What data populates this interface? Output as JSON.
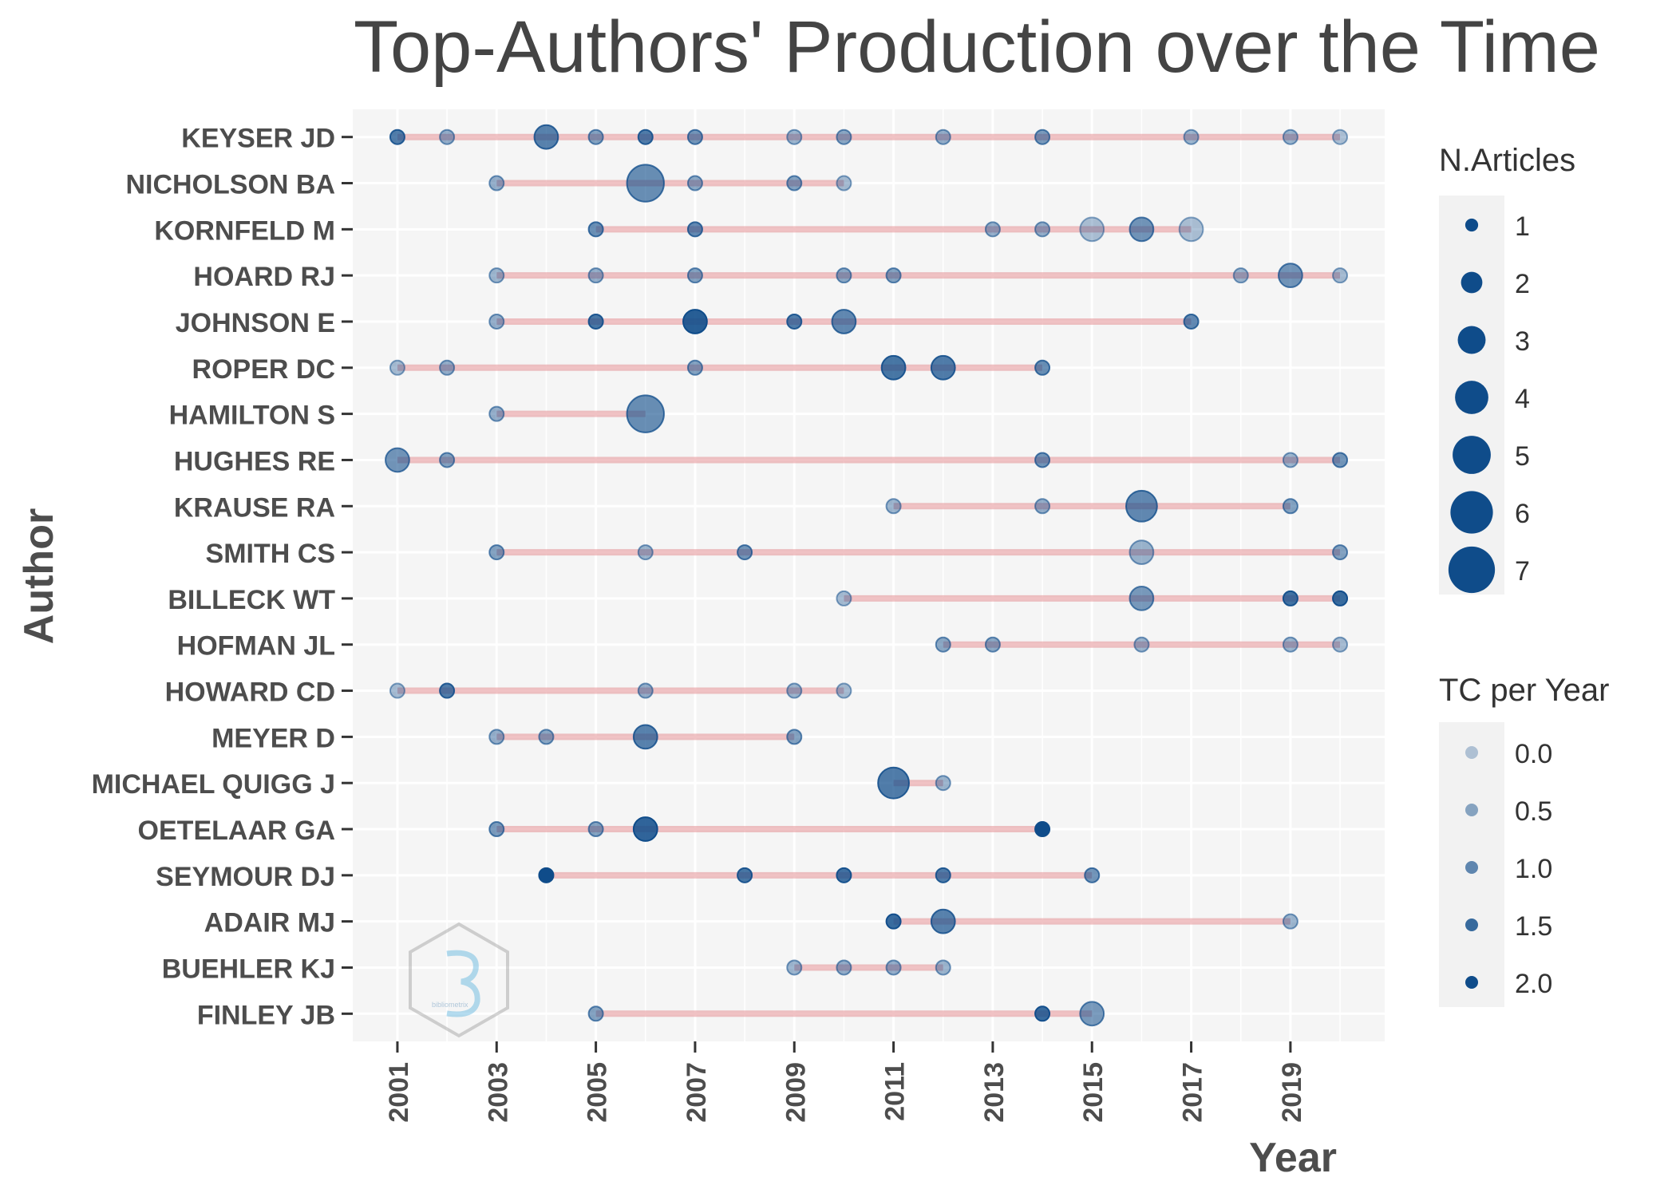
{
  "chart_data": {
    "type": "scatter",
    "title": "Top-Authors' Production over the Time",
    "xlabel": "Year",
    "ylabel": "Author",
    "xlim": [
      2000.1,
      2020.9
    ],
    "x_ticks": [
      2001,
      2003,
      2005,
      2007,
      2009,
      2011,
      2013,
      2015,
      2017,
      2019
    ],
    "grid": true,
    "colors": {
      "point": "#0f4c8a",
      "segment": "#e38f93",
      "panel": "#f5f5f5",
      "gridline": "#ffffff"
    },
    "authors": [
      {
        "name": "KEYSER JD",
        "start": 2001,
        "end": 2020,
        "points": [
          {
            "year": 2001,
            "articles": 1,
            "tc": 1.2
          },
          {
            "year": 2002,
            "articles": 1,
            "tc": 0.4
          },
          {
            "year": 2004,
            "articles": 2,
            "tc": 1.1
          },
          {
            "year": 2005,
            "articles": 1,
            "tc": 0.6
          },
          {
            "year": 2006,
            "articles": 1,
            "tc": 1.2
          },
          {
            "year": 2007,
            "articles": 1,
            "tc": 0.8
          },
          {
            "year": 2009,
            "articles": 1,
            "tc": 0.3
          },
          {
            "year": 2010,
            "articles": 1,
            "tc": 0.5
          },
          {
            "year": 2012,
            "articles": 1,
            "tc": 0.4
          },
          {
            "year": 2014,
            "articles": 1,
            "tc": 0.7
          },
          {
            "year": 2017,
            "articles": 1,
            "tc": 0.3
          },
          {
            "year": 2019,
            "articles": 1,
            "tc": 0.3
          },
          {
            "year": 2020,
            "articles": 1,
            "tc": 0.1
          }
        ]
      },
      {
        "name": "NICHOLSON BA",
        "start": 2003,
        "end": 2010,
        "points": [
          {
            "year": 2003,
            "articles": 1,
            "tc": 0.4
          },
          {
            "year": 2006,
            "articles": 4,
            "tc": 0.9
          },
          {
            "year": 2007,
            "articles": 1,
            "tc": 0.5
          },
          {
            "year": 2009,
            "articles": 1,
            "tc": 0.6
          },
          {
            "year": 2010,
            "articles": 1,
            "tc": 0.2
          }
        ]
      },
      {
        "name": "KORNFELD M",
        "start": 2005,
        "end": 2017,
        "points": [
          {
            "year": 2005,
            "articles": 1,
            "tc": 0.9
          },
          {
            "year": 2007,
            "articles": 1,
            "tc": 1.0
          },
          {
            "year": 2013,
            "articles": 1,
            "tc": 0.4
          },
          {
            "year": 2014,
            "articles": 1,
            "tc": 0.4
          },
          {
            "year": 2015,
            "articles": 2,
            "tc": 0.1
          },
          {
            "year": 2016,
            "articles": 2,
            "tc": 0.8
          },
          {
            "year": 2017,
            "articles": 2,
            "tc": 0.1
          }
        ]
      },
      {
        "name": "HOARD RJ",
        "start": 2003,
        "end": 2020,
        "points": [
          {
            "year": 2003,
            "articles": 1,
            "tc": 0.3
          },
          {
            "year": 2005,
            "articles": 1,
            "tc": 0.4
          },
          {
            "year": 2007,
            "articles": 1,
            "tc": 0.6
          },
          {
            "year": 2010,
            "articles": 1,
            "tc": 0.5
          },
          {
            "year": 2011,
            "articles": 1,
            "tc": 0.6
          },
          {
            "year": 2018,
            "articles": 1,
            "tc": 0.3
          },
          {
            "year": 2019,
            "articles": 2,
            "tc": 0.8
          },
          {
            "year": 2020,
            "articles": 1,
            "tc": 0.2
          }
        ]
      },
      {
        "name": "JOHNSON E",
        "start": 2003,
        "end": 2017,
        "points": [
          {
            "year": 2003,
            "articles": 1,
            "tc": 0.4
          },
          {
            "year": 2005,
            "articles": 1,
            "tc": 1.3
          },
          {
            "year": 2007,
            "articles": 2,
            "tc": 1.7
          },
          {
            "year": 2009,
            "articles": 1,
            "tc": 1.2
          },
          {
            "year": 2010,
            "articles": 2,
            "tc": 1.0
          },
          {
            "year": 2017,
            "articles": 1,
            "tc": 1.0
          }
        ]
      },
      {
        "name": "ROPER DC",
        "start": 2001,
        "end": 2014,
        "points": [
          {
            "year": 2001,
            "articles": 1,
            "tc": 0.2
          },
          {
            "year": 2002,
            "articles": 1,
            "tc": 0.4
          },
          {
            "year": 2007,
            "articles": 1,
            "tc": 0.6
          },
          {
            "year": 2011,
            "articles": 2,
            "tc": 1.3
          },
          {
            "year": 2012,
            "articles": 2,
            "tc": 1.2
          },
          {
            "year": 2014,
            "articles": 1,
            "tc": 0.9
          }
        ]
      },
      {
        "name": "HAMILTON S",
        "start": 2003,
        "end": 2006,
        "points": [
          {
            "year": 2003,
            "articles": 1,
            "tc": 0.4
          },
          {
            "year": 2006,
            "articles": 4,
            "tc": 0.9
          }
        ]
      },
      {
        "name": "HUGHES RE",
        "start": 2001,
        "end": 2020,
        "points": [
          {
            "year": 2001,
            "articles": 2,
            "tc": 0.8
          },
          {
            "year": 2002,
            "articles": 1,
            "tc": 0.6
          },
          {
            "year": 2014,
            "articles": 1,
            "tc": 0.8
          },
          {
            "year": 2019,
            "articles": 1,
            "tc": 0.3
          },
          {
            "year": 2020,
            "articles": 1,
            "tc": 0.8
          }
        ]
      },
      {
        "name": "KRAUSE RA",
        "start": 2011,
        "end": 2019,
        "points": [
          {
            "year": 2011,
            "articles": 1,
            "tc": 0.3
          },
          {
            "year": 2014,
            "articles": 1,
            "tc": 0.4
          },
          {
            "year": 2016,
            "articles": 3,
            "tc": 1.0
          },
          {
            "year": 2019,
            "articles": 1,
            "tc": 0.6
          }
        ]
      },
      {
        "name": "SMITH CS",
        "start": 2003,
        "end": 2020,
        "points": [
          {
            "year": 2003,
            "articles": 1,
            "tc": 0.6
          },
          {
            "year": 2006,
            "articles": 1,
            "tc": 0.3
          },
          {
            "year": 2008,
            "articles": 1,
            "tc": 0.8
          },
          {
            "year": 2016,
            "articles": 2,
            "tc": 0.3
          },
          {
            "year": 2020,
            "articles": 1,
            "tc": 0.6
          }
        ]
      },
      {
        "name": "BILLECK WT",
        "start": 2010,
        "end": 2020,
        "points": [
          {
            "year": 2010,
            "articles": 1,
            "tc": 0.2
          },
          {
            "year": 2016,
            "articles": 2,
            "tc": 0.7
          },
          {
            "year": 2019,
            "articles": 1,
            "tc": 1.4
          },
          {
            "year": 2020,
            "articles": 1,
            "tc": 1.5
          }
        ]
      },
      {
        "name": "HOFMAN JL",
        "start": 2012,
        "end": 2020,
        "points": [
          {
            "year": 2012,
            "articles": 1,
            "tc": 0.5
          },
          {
            "year": 2013,
            "articles": 1,
            "tc": 0.5
          },
          {
            "year": 2016,
            "articles": 1,
            "tc": 0.3
          },
          {
            "year": 2019,
            "articles": 1,
            "tc": 0.3
          },
          {
            "year": 2020,
            "articles": 1,
            "tc": 0.2
          }
        ]
      },
      {
        "name": "HOWARD CD",
        "start": 2001,
        "end": 2010,
        "points": [
          {
            "year": 2001,
            "articles": 1,
            "tc": 0.2
          },
          {
            "year": 2002,
            "articles": 1,
            "tc": 1.2
          },
          {
            "year": 2006,
            "articles": 1,
            "tc": 0.4
          },
          {
            "year": 2009,
            "articles": 1,
            "tc": 0.3
          },
          {
            "year": 2010,
            "articles": 1,
            "tc": 0.2
          }
        ]
      },
      {
        "name": "MEYER D",
        "start": 2003,
        "end": 2009,
        "points": [
          {
            "year": 2003,
            "articles": 1,
            "tc": 0.4
          },
          {
            "year": 2004,
            "articles": 1,
            "tc": 0.5
          },
          {
            "year": 2006,
            "articles": 2,
            "tc": 1.1
          },
          {
            "year": 2009,
            "articles": 1,
            "tc": 0.6
          }
        ]
      },
      {
        "name": "MICHAEL QUIGG J",
        "start": 2011,
        "end": 2012,
        "points": [
          {
            "year": 2011,
            "articles": 3,
            "tc": 1.2
          },
          {
            "year": 2012,
            "articles": 1,
            "tc": 0.3
          }
        ]
      },
      {
        "name": "OETELAAR GA",
        "start": 2003,
        "end": 2014,
        "points": [
          {
            "year": 2003,
            "articles": 1,
            "tc": 0.7
          },
          {
            "year": 2005,
            "articles": 1,
            "tc": 0.6
          },
          {
            "year": 2006,
            "articles": 2,
            "tc": 1.6
          },
          {
            "year": 2014,
            "articles": 1,
            "tc": 2.0
          }
        ]
      },
      {
        "name": "SEYMOUR DJ",
        "start": 2004,
        "end": 2015,
        "points": [
          {
            "year": 2004,
            "articles": 1,
            "tc": 2.0
          },
          {
            "year": 2008,
            "articles": 1,
            "tc": 1.3
          },
          {
            "year": 2010,
            "articles": 1,
            "tc": 1.4
          },
          {
            "year": 2012,
            "articles": 1,
            "tc": 1.2
          },
          {
            "year": 2015,
            "articles": 1,
            "tc": 0.8
          }
        ]
      },
      {
        "name": "ADAIR MJ",
        "start": 2011,
        "end": 2019,
        "points": [
          {
            "year": 2011,
            "articles": 1,
            "tc": 1.5
          },
          {
            "year": 2012,
            "articles": 2,
            "tc": 1.1
          },
          {
            "year": 2019,
            "articles": 1,
            "tc": 0.3
          }
        ]
      },
      {
        "name": "BUEHLER KJ",
        "start": 2009,
        "end": 2012,
        "points": [
          {
            "year": 2009,
            "articles": 1,
            "tc": 0.3
          },
          {
            "year": 2010,
            "articles": 1,
            "tc": 0.4
          },
          {
            "year": 2011,
            "articles": 1,
            "tc": 0.4
          },
          {
            "year": 2012,
            "articles": 1,
            "tc": 0.3
          }
        ]
      },
      {
        "name": "FINLEY JB",
        "start": 2005,
        "end": 2015,
        "points": [
          {
            "year": 2005,
            "articles": 1,
            "tc": 0.6
          },
          {
            "year": 2014,
            "articles": 1,
            "tc": 1.5
          },
          {
            "year": 2015,
            "articles": 2,
            "tc": 0.7
          }
        ]
      }
    ],
    "legend_articles": {
      "title": "N.Articles",
      "values": [
        1,
        2,
        3,
        4,
        5,
        6,
        7
      ],
      "labels": [
        "1",
        "2",
        "3",
        "4",
        "5",
        "6",
        "7"
      ]
    },
    "legend_tc": {
      "title": "TC per Year",
      "values": [
        0.0,
        0.5,
        1.0,
        1.5,
        2.0
      ],
      "labels": [
        "0.0",
        "0.5",
        "1.0",
        "1.5",
        "2.0"
      ]
    },
    "legend_placement": "right"
  },
  "watermark": {
    "text": "bibliometrix",
    "icon": "bibliometrix-logo-icon"
  }
}
